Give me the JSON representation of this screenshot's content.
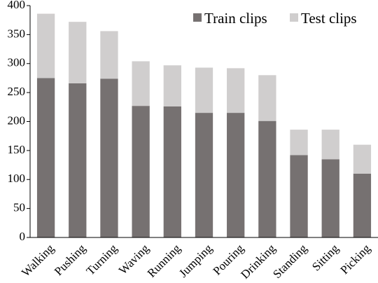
{
  "chart_data": {
    "type": "bar",
    "stacked": true,
    "categories": [
      "Walking",
      "Pushing",
      "Turning",
      "Waving",
      "Running",
      "Jumping",
      "Pouring",
      "Drinking",
      "Standing",
      "Sitting",
      "Picking"
    ],
    "series": [
      {
        "name": "Train clips",
        "color": "#767171",
        "values": [
          275,
          266,
          274,
          227,
          226,
          215,
          215,
          201,
          142,
          135,
          110
        ]
      },
      {
        "name": "Test clips",
        "color": "#d0cece",
        "values": [
          111,
          106,
          82,
          77,
          71,
          78,
          77,
          79,
          44,
          51,
          50
        ]
      }
    ],
    "ylim": [
      0,
      400
    ],
    "yticks": [
      0,
      50,
      100,
      150,
      200,
      250,
      300,
      350,
      400
    ],
    "grid": false,
    "legend_position": "top-right",
    "title": "",
    "xlabel": "",
    "ylabel": ""
  }
}
